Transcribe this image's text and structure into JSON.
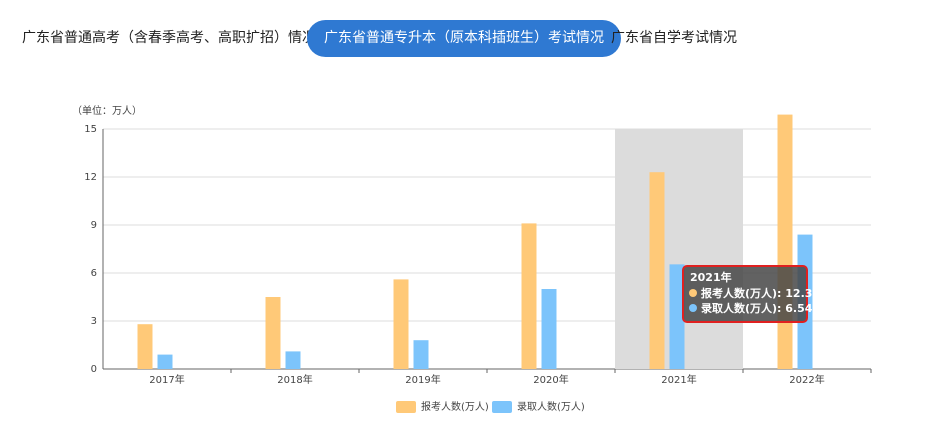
{
  "tabs": [
    {
      "label": "广东省普通高考（含春季高考、高职扩招）情况",
      "active": false
    },
    {
      "label": "广东省普通专升本（原本科插班生）考试情况",
      "active": true
    },
    {
      "label": "广东省自学考试情况",
      "active": false
    }
  ],
  "colors": {
    "accent": "#2f79d2",
    "series1": "#ffc978",
    "series2": "#7cc4fb",
    "highlight": "#dcdcdc",
    "tooltip_border": "#e02020"
  },
  "chart_data": {
    "type": "bar",
    "unit_label": "（单位：万人）",
    "categories": [
      "2017年",
      "2018年",
      "2019年",
      "2020年",
      "2021年",
      "2022年"
    ],
    "series": [
      {
        "name": "报考人数(万人)",
        "values": [
          2.8,
          4.5,
          5.6,
          9.1,
          12.3,
          15.9
        ]
      },
      {
        "name": "录取人数(万人)",
        "values": [
          0.9,
          1.1,
          1.8,
          5.0,
          6.54,
          8.4
        ]
      }
    ],
    "ylim": [
      0,
      15
    ],
    "yticks": [
      "0",
      "3",
      "6",
      "9",
      "12",
      "15"
    ],
    "grid": true,
    "legend": "bottom-center",
    "highlight_category": "2021年",
    "tooltip": {
      "title": "2021年",
      "lines": [
        "报考人数(万人): 12.3",
        "录取人数(万人): 6.54"
      ]
    }
  }
}
